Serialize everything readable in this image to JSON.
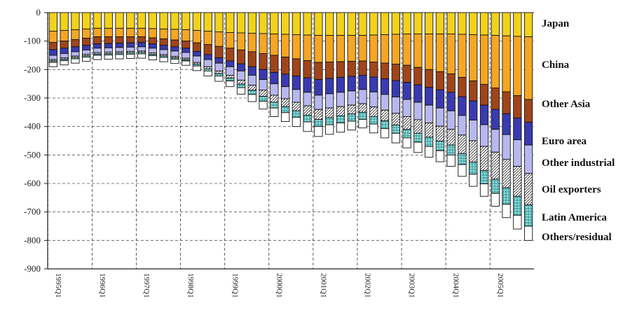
{
  "chart_data": {
    "type": "bar",
    "stacked": true,
    "orientation": "negative-down",
    "ylim": [
      -900,
      0
    ],
    "yticks": [
      0,
      -100,
      -200,
      -300,
      -400,
      -500,
      -600,
      -700,
      -800,
      -900
    ],
    "ytick_labels": [
      "0",
      "-100",
      "-200",
      "-300",
      "-400",
      "-500",
      "-600",
      "-700",
      "-800",
      "-900"
    ],
    "xtick_labels": [
      "1995Q1",
      "1996Q1",
      "1997Q1",
      "1998Q1",
      "1999Q1",
      "2000Q1",
      "2001Q1",
      "2002Q1",
      "2003Q1",
      "2004Q1",
      "2005Q1"
    ],
    "grid": "dashed",
    "legend_placement": "right",
    "quarters_count": 44,
    "series": [
      {
        "name": "Japan",
        "color": "#f2d21c",
        "pattern": "solid",
        "anchors": [
          [
            0,
            -65
          ],
          [
            4,
            -55
          ],
          [
            8,
            -55
          ],
          [
            12,
            -60
          ],
          [
            16,
            -70
          ],
          [
            20,
            -75
          ],
          [
            24,
            -80
          ],
          [
            28,
            -80
          ],
          [
            32,
            -75
          ],
          [
            36,
            -75
          ],
          [
            40,
            -80
          ],
          [
            43,
            -85
          ]
        ]
      },
      {
        "name": "China",
        "color": "#f5a623",
        "pattern": "solid",
        "anchors": [
          [
            0,
            -40
          ],
          [
            4,
            -30
          ],
          [
            8,
            -30
          ],
          [
            12,
            -40
          ],
          [
            16,
            -55
          ],
          [
            20,
            -75
          ],
          [
            24,
            -95
          ],
          [
            28,
            -90
          ],
          [
            32,
            -110
          ],
          [
            36,
            -140
          ],
          [
            40,
            -185
          ],
          [
            43,
            -220
          ]
        ]
      },
      {
        "name": "Other Asia",
        "color": "#a0451a",
        "pattern": "solid",
        "anchors": [
          [
            0,
            -25
          ],
          [
            4,
            -25
          ],
          [
            8,
            -20
          ],
          [
            12,
            -25
          ],
          [
            16,
            -45
          ],
          [
            20,
            -60
          ],
          [
            24,
            -60
          ],
          [
            28,
            -50
          ],
          [
            32,
            -60
          ],
          [
            36,
            -65
          ],
          [
            40,
            -75
          ],
          [
            43,
            -80
          ]
        ]
      },
      {
        "name": "Euro area",
        "color": "#3a3ab0",
        "pattern": "solid",
        "anchors": [
          [
            0,
            -20
          ],
          [
            4,
            -15
          ],
          [
            8,
            -15
          ],
          [
            12,
            -15
          ],
          [
            16,
            -20
          ],
          [
            20,
            -40
          ],
          [
            24,
            -55
          ],
          [
            28,
            -50
          ],
          [
            32,
            -60
          ],
          [
            36,
            -65
          ],
          [
            40,
            -70
          ],
          [
            43,
            -80
          ]
        ]
      },
      {
        "name": "Other industrial",
        "color": "#b8b8f0",
        "pattern": "solid",
        "anchors": [
          [
            0,
            -15
          ],
          [
            4,
            -15
          ],
          [
            8,
            -15
          ],
          [
            12,
            -20
          ],
          [
            16,
            -30
          ],
          [
            20,
            -40
          ],
          [
            24,
            -50
          ],
          [
            28,
            -50
          ],
          [
            32,
            -60
          ],
          [
            36,
            -65
          ],
          [
            40,
            -80
          ],
          [
            43,
            -100
          ]
        ]
      },
      {
        "name": "Oil exporters",
        "color": "#ffffff",
        "pattern": "hatch",
        "anchors": [
          [
            0,
            -5
          ],
          [
            4,
            -5
          ],
          [
            8,
            -5
          ],
          [
            12,
            -5
          ],
          [
            16,
            -10
          ],
          [
            20,
            -25
          ],
          [
            24,
            -35
          ],
          [
            28,
            -30
          ],
          [
            32,
            -45
          ],
          [
            36,
            -55
          ],
          [
            40,
            -95
          ],
          [
            43,
            -110
          ]
        ]
      },
      {
        "name": "Latin America",
        "color": "#8fe0e0",
        "pattern": "grid",
        "anchors": [
          [
            0,
            -5
          ],
          [
            4,
            -5
          ],
          [
            8,
            -5
          ],
          [
            12,
            -5
          ],
          [
            16,
            -10
          ],
          [
            20,
            -20
          ],
          [
            24,
            -25
          ],
          [
            28,
            -25
          ],
          [
            32,
            -30
          ],
          [
            36,
            -35
          ],
          [
            40,
            -50
          ],
          [
            43,
            -75
          ]
        ]
      },
      {
        "name": "Others/residual",
        "color": "#ffffff",
        "pattern": "solid",
        "anchors": [
          [
            0,
            -15
          ],
          [
            4,
            -15
          ],
          [
            8,
            -15
          ],
          [
            12,
            -15
          ],
          [
            16,
            -20
          ],
          [
            20,
            -30
          ],
          [
            24,
            -35
          ],
          [
            28,
            -30
          ],
          [
            32,
            -35
          ],
          [
            36,
            -40
          ],
          [
            40,
            -45
          ],
          [
            43,
            -50
          ]
        ]
      }
    ]
  }
}
